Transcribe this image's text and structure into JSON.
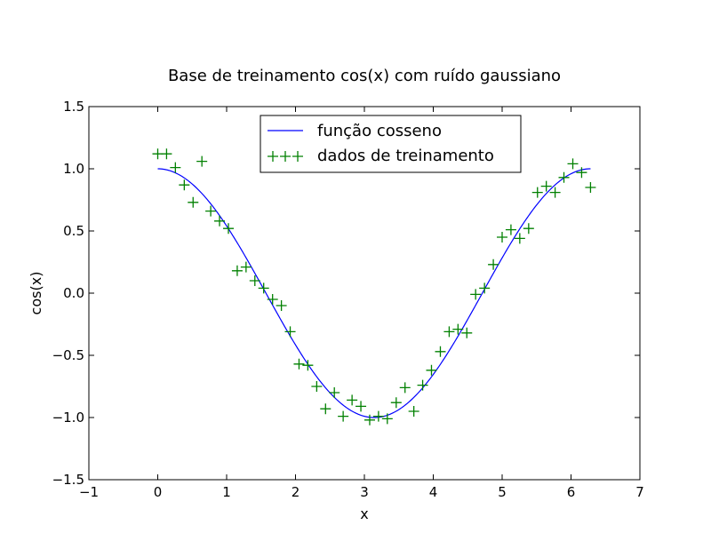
{
  "chart_data": {
    "type": "line",
    "title": "Base de treinamento cos(x) com ruído gaussiano",
    "xlabel": "x",
    "ylabel": "cos(x)",
    "xlim": [
      -1,
      7
    ],
    "ylim": [
      -1.5,
      1.5
    ],
    "xticks": [
      -1,
      0,
      1,
      2,
      3,
      4,
      5,
      6,
      7
    ],
    "yticks": [
      -1.5,
      -1.0,
      -0.5,
      0.0,
      0.5,
      1.0,
      1.5
    ],
    "xtick_labels": [
      "−1",
      "0",
      "1",
      "2",
      "3",
      "4",
      "5",
      "6",
      "7"
    ],
    "ytick_labels": [
      "−1.5",
      "−1.0",
      "−0.5",
      "0.0",
      "0.5",
      "1.0",
      "1.5"
    ],
    "legend_position": "upper-center",
    "grid": false,
    "series": [
      {
        "name": "função cosseno",
        "type": "line",
        "function": "cos",
        "domain": [
          0,
          6.2832
        ],
        "color": "#0000ff"
      },
      {
        "name": "dados de treinamento",
        "type": "scatter",
        "marker": "+",
        "color": "#008000",
        "x": [
          0.0,
          0.128,
          0.256,
          0.385,
          0.513,
          0.641,
          0.769,
          0.897,
          1.026,
          1.154,
          1.282,
          1.41,
          1.538,
          1.667,
          1.795,
          1.923,
          2.051,
          2.179,
          2.308,
          2.436,
          2.564,
          2.692,
          2.821,
          2.949,
          3.077,
          3.205,
          3.333,
          3.462,
          3.59,
          3.718,
          3.846,
          3.974,
          4.103,
          4.231,
          4.359,
          4.487,
          4.615,
          4.744,
          4.872,
          5.0,
          5.128,
          5.256,
          5.385,
          5.513,
          5.641,
          5.769,
          5.897,
          6.026,
          6.154,
          6.283
        ],
        "y": [
          1.12,
          1.12,
          1.01,
          0.87,
          0.73,
          1.06,
          0.66,
          0.58,
          0.52,
          0.18,
          0.21,
          0.1,
          0.04,
          -0.05,
          -0.1,
          -0.31,
          -0.57,
          -0.58,
          -0.75,
          -0.93,
          -0.8,
          -0.99,
          -0.86,
          -0.91,
          -1.02,
          -0.99,
          -1.01,
          -0.88,
          -0.76,
          -0.95,
          -0.74,
          -0.62,
          -0.47,
          -0.31,
          -0.29,
          -0.32,
          -0.01,
          0.04,
          0.23,
          0.45,
          0.51,
          0.44,
          0.52,
          0.81,
          0.86,
          0.81,
          0.93,
          1.04,
          0.97,
          0.85
        ]
      }
    ]
  }
}
